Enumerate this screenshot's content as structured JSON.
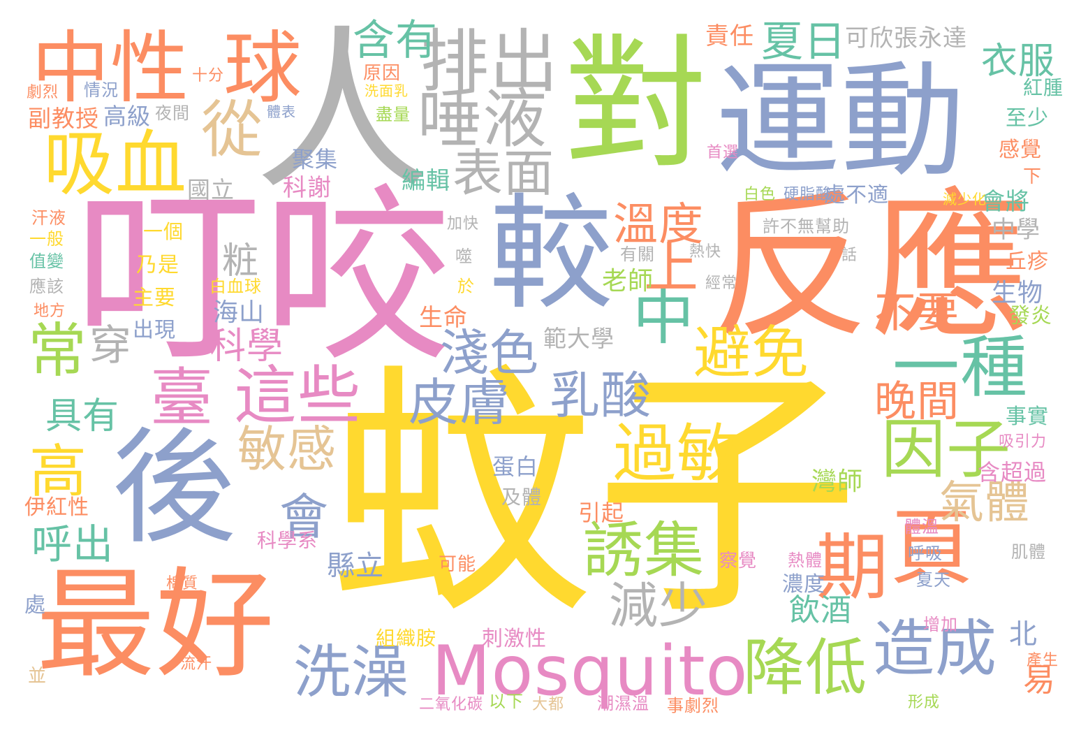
{
  "palette": [
    "#66c2a5",
    "#fc8d62",
    "#8da0cb",
    "#e78ac3",
    "#a6d854",
    "#ffd92f",
    "#e5c494",
    "#b3b3b3"
  ],
  "words": [
    {
      "text": "蚊子",
      "color": "#ffd92f"
    },
    {
      "text": "叮咬",
      "color": "#e78ac3"
    },
    {
      "text": "反應",
      "color": "#fc8d62"
    },
    {
      "text": "人",
      "color": "#b3b3b3"
    },
    {
      "text": "對",
      "color": "#a6d854"
    },
    {
      "text": "運動",
      "color": "#8da0cb"
    },
    {
      "text": "較",
      "color": "#8da0cb"
    },
    {
      "text": "後",
      "color": "#8da0cb"
    },
    {
      "text": "最好",
      "color": "#fc8d62"
    },
    {
      "text": "Mosquito",
      "color": "#e78ac3"
    },
    {
      "text": "中性",
      "color": "#fc8d62"
    },
    {
      "text": "球",
      "color": "#fc8d62"
    },
    {
      "text": "吸血",
      "color": "#ffd92f"
    },
    {
      "text": "排出",
      "color": "#b3b3b3"
    },
    {
      "text": "唾液",
      "color": "#b3b3b3"
    },
    {
      "text": "表面",
      "color": "#b3b3b3"
    },
    {
      "text": "含有",
      "color": "#66c2a5"
    },
    {
      "text": "夏日",
      "color": "#66c2a5"
    },
    {
      "text": "從",
      "color": "#e5c494"
    },
    {
      "text": "臺",
      "color": "#e78ac3"
    },
    {
      "text": "這些",
      "color": "#e78ac3"
    },
    {
      "text": "常",
      "color": "#a6d854"
    },
    {
      "text": "高",
      "color": "#ffd92f"
    },
    {
      "text": "溫度",
      "color": "#fc8d62"
    },
    {
      "text": "中",
      "color": "#66c2a5"
    },
    {
      "text": "上",
      "color": "#fc8d62"
    },
    {
      "text": "避免",
      "color": "#ffd92f"
    },
    {
      "text": "一種",
      "color": "#66c2a5"
    },
    {
      "text": "因子",
      "color": "#a6d854"
    },
    {
      "text": "過敏",
      "color": "#ffd92f"
    },
    {
      "text": "期",
      "color": "#fc8d62"
    },
    {
      "text": "頁",
      "color": "#fc8d62"
    },
    {
      "text": "誘集",
      "color": "#a6d854"
    },
    {
      "text": "減少",
      "color": "#b3b3b3"
    },
    {
      "text": "洗澡",
      "color": "#8da0cb"
    },
    {
      "text": "降低",
      "color": "#a6d854"
    },
    {
      "text": "造成",
      "color": "#8da0cb"
    },
    {
      "text": "乳酸",
      "color": "#8da0cb"
    },
    {
      "text": "皮膚",
      "color": "#8da0cb"
    },
    {
      "text": "淺色",
      "color": "#8da0cb"
    },
    {
      "text": "敏感",
      "color": "#e5c494"
    },
    {
      "text": "會",
      "color": "#8da0cb"
    },
    {
      "text": "氣體",
      "color": "#e5c494"
    },
    {
      "text": "晚間",
      "color": "#fc8d62"
    },
    {
      "text": "不要",
      "color": "#fc8d62"
    },
    {
      "text": "衣服",
      "color": "#66c2a5"
    },
    {
      "text": "呼出",
      "color": "#66c2a5"
    },
    {
      "text": "具有",
      "color": "#66c2a5"
    },
    {
      "text": "穿",
      "color": "#b3b3b3"
    },
    {
      "text": "科學",
      "color": "#e78ac3"
    },
    {
      "text": "粧",
      "color": "#b3b3b3"
    },
    {
      "text": "可欣張永達",
      "color": "#b3b3b3"
    },
    {
      "text": "責任",
      "color": "#fc8d62"
    },
    {
      "text": "飲酒",
      "color": "#66c2a5"
    },
    {
      "text": "縣立",
      "color": "#8da0cb"
    },
    {
      "text": "易",
      "color": "#fc8d62"
    },
    {
      "text": "副教授",
      "color": "#fc8d62"
    },
    {
      "text": "高級",
      "color": "#8da0cb"
    },
    {
      "text": "國立",
      "color": "#b3b3b3"
    },
    {
      "text": "科謝",
      "color": "#e78ac3"
    },
    {
      "text": "編輯",
      "color": "#66c2a5"
    },
    {
      "text": "聚集",
      "color": "#8da0cb"
    },
    {
      "text": "老師",
      "color": "#a6d854"
    },
    {
      "text": "海山",
      "color": "#8da0cb"
    },
    {
      "text": "範大學",
      "color": "#b3b3b3"
    },
    {
      "text": "灣師",
      "color": "#a6d854"
    },
    {
      "text": "生命",
      "color": "#fc8d62"
    },
    {
      "text": "生物",
      "color": "#8da0cb"
    },
    {
      "text": "中學",
      "color": "#b3b3b3"
    },
    {
      "text": "會將",
      "color": "#66c2a5"
    },
    {
      "text": "處不適",
      "color": "#8da0cb"
    },
    {
      "text": "丘疹",
      "color": "#fc8d62"
    },
    {
      "text": "發炎",
      "color": "#a6d854"
    },
    {
      "text": "事實",
      "color": "#66c2a5"
    },
    {
      "text": "含超過",
      "color": "#e78ac3"
    },
    {
      "text": "蛋白",
      "color": "#8da0cb"
    },
    {
      "text": "及體",
      "color": "#b3b3b3"
    },
    {
      "text": "引起",
      "color": "#fc8d62"
    },
    {
      "text": "科學系",
      "color": "#e78ac3"
    },
    {
      "text": "刺激性",
      "color": "#e78ac3"
    },
    {
      "text": "組織胺",
      "color": "#ffd92f"
    },
    {
      "text": "濃度",
      "color": "#8da0cb"
    },
    {
      "text": "出現",
      "color": "#8da0cb"
    },
    {
      "text": "乃是",
      "color": "#ffd92f"
    },
    {
      "text": "主要",
      "color": "#ffd92f"
    },
    {
      "text": "一個",
      "color": "#ffd92f"
    },
    {
      "text": "伊紅性",
      "color": "#fc8d62"
    },
    {
      "text": "紅腫",
      "color": "#66c2a5"
    },
    {
      "text": "至少",
      "color": "#66c2a5"
    },
    {
      "text": "感覺",
      "color": "#fc8d62"
    },
    {
      "text": "北",
      "color": "#8da0cb"
    },
    {
      "text": "情況",
      "color": "#8da0cb"
    },
    {
      "text": "原因",
      "color": "#fc8d62"
    },
    {
      "text": "夜間",
      "color": "#b3b3b3"
    },
    {
      "text": "盡量",
      "color": "#a6d854"
    },
    {
      "text": "許不無幫助",
      "color": "#b3b3b3"
    },
    {
      "text": "熱快",
      "color": "#b3b3b3"
    },
    {
      "text": "有關",
      "color": "#b3b3b3"
    },
    {
      "text": "白色",
      "color": "#a6d854"
    },
    {
      "text": "硬脂酸",
      "color": "#8da0cb"
    },
    {
      "text": "減少化",
      "color": "#ffd92f"
    },
    {
      "text": "加快",
      "color": "#b3b3b3"
    },
    {
      "text": "噬",
      "color": "#b3b3b3"
    },
    {
      "text": "於",
      "color": "#ffd92f"
    },
    {
      "text": "下",
      "color": "#fc8d62"
    },
    {
      "text": "白血球",
      "color": "#ffd92f"
    },
    {
      "text": "經常",
      "color": "#b3b3b3"
    },
    {
      "text": "話",
      "color": "#b3b3b3"
    },
    {
      "text": "汗液",
      "color": "#fc8d62"
    },
    {
      "text": "一般",
      "color": "#ffd92f"
    },
    {
      "text": "值變",
      "color": "#66c2a5"
    },
    {
      "text": "應該",
      "color": "#b3b3b3"
    },
    {
      "text": "地方",
      "color": "#fc8d62"
    },
    {
      "text": "劇烈",
      "color": "#fc8d62"
    },
    {
      "text": "處",
      "color": "#8da0cb"
    },
    {
      "text": "並",
      "color": "#e5c494"
    },
    {
      "text": "可能",
      "color": "#fc8d62"
    },
    {
      "text": "熱體",
      "color": "#e78ac3"
    },
    {
      "text": "察覺",
      "color": "#e78ac3"
    },
    {
      "text": "呼吸",
      "color": "#8da0cb"
    },
    {
      "text": "夏天",
      "color": "#8da0cb"
    },
    {
      "text": "體溫",
      "color": "#e78ac3"
    },
    {
      "text": "增加",
      "color": "#e78ac3"
    },
    {
      "text": "產生",
      "color": "#fc8d62"
    },
    {
      "text": "潮濕溫",
      "color": "#e78ac3"
    },
    {
      "text": "事劇烈",
      "color": "#fc8d62"
    },
    {
      "text": "二氧化碳",
      "color": "#e78ac3"
    },
    {
      "text": "以下",
      "color": "#a6d854"
    },
    {
      "text": "形成",
      "color": "#a6d854"
    },
    {
      "text": "大都",
      "color": "#e5c494"
    },
    {
      "text": "棉質",
      "color": "#fc8d62"
    },
    {
      "text": "流汗",
      "color": "#fc8d62"
    },
    {
      "text": "十分",
      "color": "#fc8d62"
    },
    {
      "text": "吸引力",
      "color": "#e78ac3"
    },
    {
      "text": "肌體",
      "color": "#b3b3b3"
    },
    {
      "text": "首選",
      "color": "#e78ac3"
    },
    {
      "text": "體表",
      "color": "#8da0cb"
    },
    {
      "text": "洗面乳",
      "color": "#ffd92f"
    }
  ]
}
